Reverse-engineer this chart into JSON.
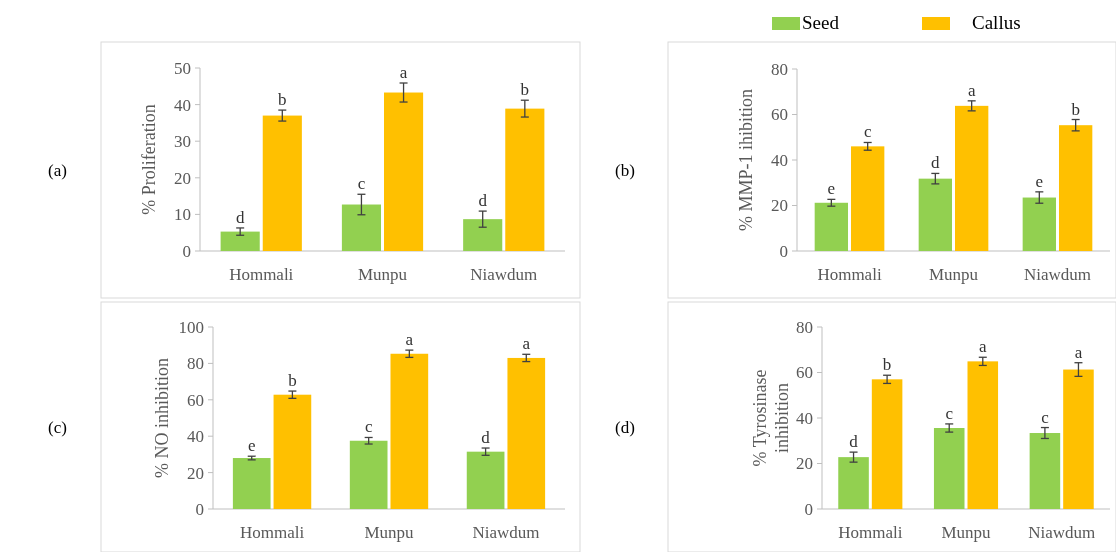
{
  "chart_data": [
    {
      "type": "bar",
      "ylabel": "% Proliferation",
      "annotations": [
        "(a)"
      ],
      "categories": [
        "Hommali",
        "Munpu",
        "Niawdum"
      ],
      "ylim": [
        0,
        50
      ],
      "yticks": [
        0,
        10,
        20,
        30,
        40,
        50
      ],
      "legend": false,
      "series": [
        {
          "color": "#92d050",
          "values": [
            5.3,
            12.7,
            8.7
          ],
          "errors": [
            1,
            2.8,
            2.2
          ],
          "value_labels": [
            "d",
            "c",
            "d"
          ]
        },
        {
          "color": "#ffc000",
          "values": [
            37,
            43.3,
            38.9
          ],
          "errors": [
            1.5,
            2.6,
            2.3
          ],
          "value_labels": [
            "b",
            "a",
            "b"
          ]
        }
      ]
    },
    {
      "type": "bar",
      "ylabel": "% MMP-1  ihibition",
      "annotations": [
        "(b)"
      ],
      "categories": [
        "Hommali",
        "Munpu",
        "Niawdum"
      ],
      "ylim": [
        0,
        80
      ],
      "yticks": [
        0,
        20,
        40,
        60,
        80
      ],
      "legend": "top",
      "series": [
        {
          "name": "Seed",
          "color": "#92d050",
          "values": [
            21.2,
            31.8,
            23.5
          ],
          "errors": [
            1.5,
            2.3,
            2.5
          ],
          "value_labels": [
            "e",
            "d",
            "e"
          ]
        },
        {
          "name": "Callus",
          "color": "#ffc000",
          "values": [
            46,
            63.8,
            55.3
          ],
          "errors": [
            1.7,
            2.2,
            2.5
          ],
          "value_labels": [
            "c",
            "a",
            "b"
          ]
        }
      ]
    },
    {
      "type": "bar",
      "ylabel": "% NO inhibition",
      "annotations": [
        "(c)"
      ],
      "categories": [
        "Hommali",
        "Munpu",
        "Niawdum"
      ],
      "ylim": [
        0,
        100
      ],
      "yticks": [
        0,
        20,
        40,
        60,
        80,
        100
      ],
      "legend": false,
      "series": [
        {
          "color": "#92d050",
          "values": [
            28,
            37.5,
            31.5
          ],
          "errors": [
            1,
            1.8,
            2
          ],
          "value_labels": [
            "e",
            "c",
            "d"
          ]
        },
        {
          "color": "#ffc000",
          "values": [
            62.8,
            85.3,
            83
          ],
          "errors": [
            2,
            2,
            2
          ],
          "value_labels": [
            "b",
            "a",
            "a"
          ]
        }
      ]
    },
    {
      "type": "bar",
      "ylabel": "% Tyrosinase inhibition",
      "annotations": [
        "(d)"
      ],
      "categories": [
        "Hommali",
        "Munpu",
        "Niawdum"
      ],
      "ylim": [
        0,
        80
      ],
      "yticks": [
        0,
        20,
        40,
        60,
        80
      ],
      "legend": false,
      "series": [
        {
          "color": "#92d050",
          "values": [
            22.8,
            35.6,
            33.4
          ],
          "errors": [
            2.2,
            1.8,
            2.4
          ],
          "value_labels": [
            "d",
            "c",
            "c"
          ]
        },
        {
          "color": "#ffc000",
          "values": [
            57,
            64.9,
            61.3
          ],
          "errors": [
            1.8,
            1.8,
            3
          ],
          "value_labels": [
            "b",
            "a",
            "a"
          ]
        }
      ]
    }
  ]
}
